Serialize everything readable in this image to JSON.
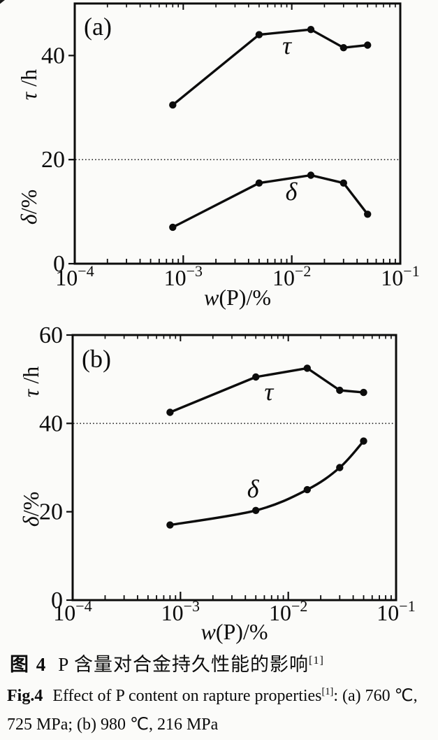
{
  "figure": {
    "caption_zh": {
      "label": "图 4",
      "text": "P 含量对合金持久性能的影响",
      "sup": "[1]"
    },
    "caption_en": {
      "label": "Fig.4",
      "text": "Effect of P content on rapture properties",
      "sup": "[1]",
      "rest": ": (a) 760 ℃, 725 MPa; (b) 980 ℃, 216 MPa"
    }
  },
  "chart_data": [
    {
      "type": "line",
      "panel_label": "(a)",
      "x_scale": "log",
      "xlim": [
        0.0001,
        0.1
      ],
      "x_tick_exponents": [
        -4,
        -3,
        -2,
        -1
      ],
      "x_tick_labels": [
        "10⁻⁴",
        "10⁻³",
        "10⁻²",
        "10⁻¹"
      ],
      "xlabel": "w(P)/%",
      "xlabel_segments": [
        {
          "t": "w",
          "i": true
        },
        {
          "t": "(P)/%",
          "i": false
        }
      ],
      "ylim": [
        0,
        50
      ],
      "y_ticks": [
        0,
        20,
        40
      ],
      "ylabels": [
        "τ/h",
        "δ/%"
      ],
      "ref_line_y": 20,
      "grid": false,
      "y_axis_labels": [
        {
          "segments": [
            {
              "t": "τ",
              "i": true
            },
            {
              "t": " /h",
              "i": false
            }
          ],
          "anchor_y_value": 34.4
        },
        {
          "segments": [
            {
              "t": "δ",
              "i": true
            },
            {
              "t": "/%",
              "i": false
            }
          ],
          "anchor_y_value": 10.9
        }
      ],
      "series": [
        {
          "name": "τ",
          "smooth": false,
          "x": [
            0.0008,
            0.005,
            0.015,
            0.03,
            0.05
          ],
          "y": [
            30.5,
            44,
            45,
            41.5,
            42
          ],
          "label": {
            "t": "τ",
            "x": 0.009,
            "y": 40.3
          }
        },
        {
          "name": "δ",
          "smooth": false,
          "x": [
            0.0008,
            0.005,
            0.015,
            0.03,
            0.05
          ],
          "y": [
            7,
            15.5,
            17,
            15.5,
            9.5
          ],
          "label": {
            "t": "δ",
            "x": 0.0099,
            "y": 12.2
          }
        }
      ]
    },
    {
      "type": "line",
      "panel_label": "(b)",
      "x_scale": "log",
      "xlim": [
        0.0001,
        0.1
      ],
      "x_tick_exponents": [
        -4,
        -3,
        -2,
        -1
      ],
      "x_tick_labels": [
        "10⁻⁴",
        "10⁻³",
        "10⁻²",
        "10⁻¹"
      ],
      "xlabel": "w(P)/%",
      "xlabel_segments": [
        {
          "t": "w",
          "i": true
        },
        {
          "t": "(P)/%",
          "i": false
        }
      ],
      "ylim": [
        0,
        60
      ],
      "y_ticks": [
        0,
        20,
        40,
        60
      ],
      "ylabels": [
        "τ/h",
        "δ/%"
      ],
      "ref_line_y": 40,
      "grid": false,
      "y_axis_labels": [
        {
          "segments": [
            {
              "t": "τ",
              "i": true
            },
            {
              "t": " /h",
              "i": false
            }
          ],
          "anchor_y_value": 49.4
        },
        {
          "segments": [
            {
              "t": "δ",
              "i": true
            },
            {
              "t": "/%",
              "i": false
            }
          ],
          "anchor_y_value": 20.6
        }
      ],
      "series": [
        {
          "name": "τ",
          "smooth": false,
          "x": [
            0.0008,
            0.005,
            0.015,
            0.03,
            0.05
          ],
          "y": [
            42.5,
            50.5,
            52.5,
            47.5,
            47
          ],
          "label": {
            "t": "τ",
            "x": 0.0066,
            "y": 45.3
          }
        },
        {
          "name": "δ",
          "smooth": true,
          "x": [
            0.0008,
            0.005,
            0.015,
            0.03,
            0.05
          ],
          "y": [
            17,
            20.3,
            25,
            30,
            36
          ],
          "label": {
            "t": "δ",
            "x": 0.0047,
            "y": 23.3
          }
        }
      ]
    }
  ]
}
